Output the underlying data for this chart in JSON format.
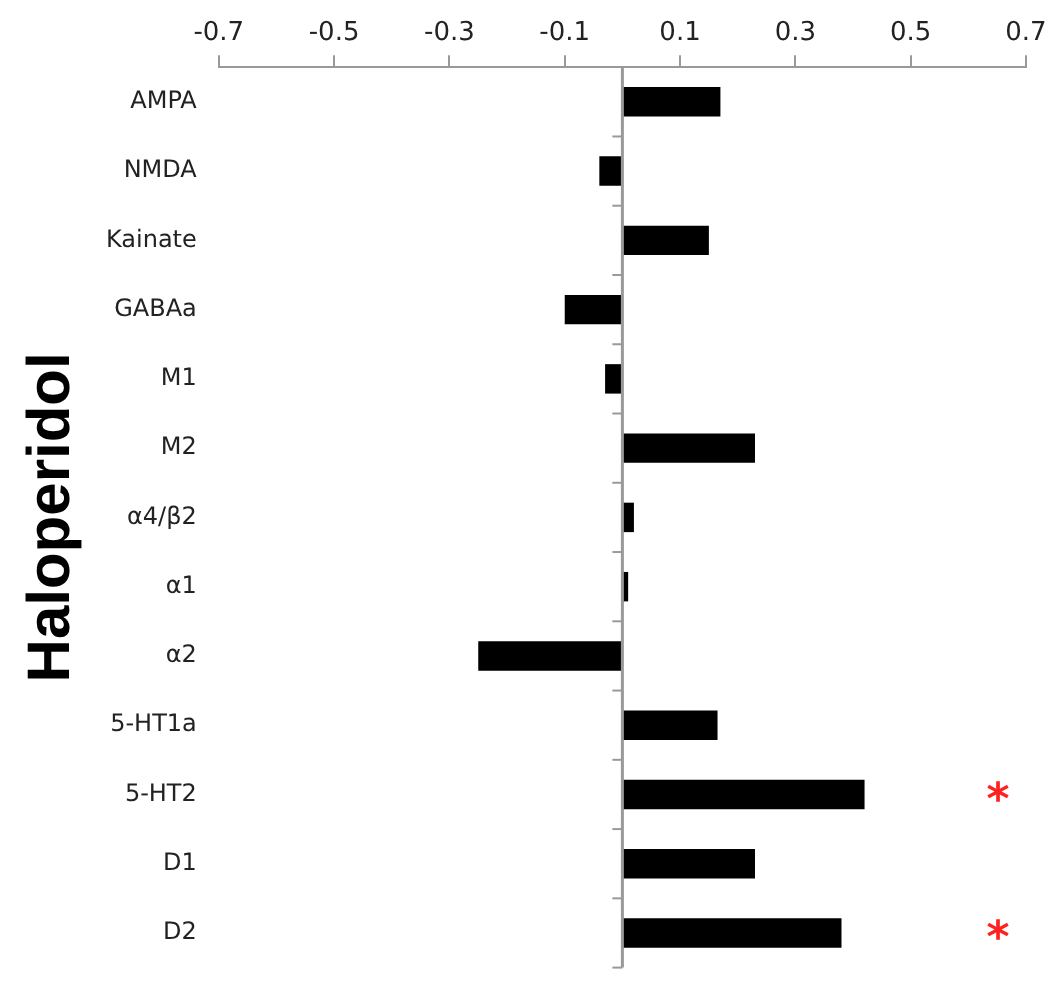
{
  "chart_data": {
    "type": "bar",
    "orientation": "horizontal",
    "ylabel": "Haloperidol",
    "categories": [
      "AMPA",
      "NMDA",
      "Kainate",
      "GABAa",
      "M1",
      "M2",
      "α4/β2",
      "α1",
      "α2",
      "5-HT1a",
      "5-HT2",
      "D1",
      "D2"
    ],
    "values": [
      0.17,
      -0.04,
      0.15,
      -0.1,
      -0.03,
      0.23,
      0.02,
      0.01,
      -0.25,
      0.165,
      0.42,
      0.23,
      0.38
    ],
    "color": "#000000",
    "xlim": [
      -0.7,
      0.7
    ],
    "xticks": [
      -0.7,
      -0.5,
      -0.3,
      -0.1,
      0.1,
      0.3,
      0.5,
      0.7
    ],
    "grid": false,
    "legend": false,
    "value_labels": [
      null,
      null,
      null,
      null,
      null,
      null,
      null,
      null,
      null,
      null,
      "*",
      null,
      "*"
    ]
  }
}
